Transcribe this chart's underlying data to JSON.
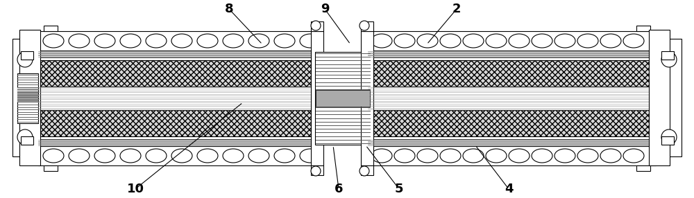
{
  "figsize": [
    10.0,
    2.86
  ],
  "dpi": 100,
  "bg_color": "#ffffff",
  "lc": "#000000",
  "lw": 0.8,
  "gray_light": "#e8e8e8",
  "gray_med": "#b0b0b0",
  "gray_dark": "#888888",
  "gray_stripe": "#cccccc",
  "hatch_fc": "#c8c8c8"
}
